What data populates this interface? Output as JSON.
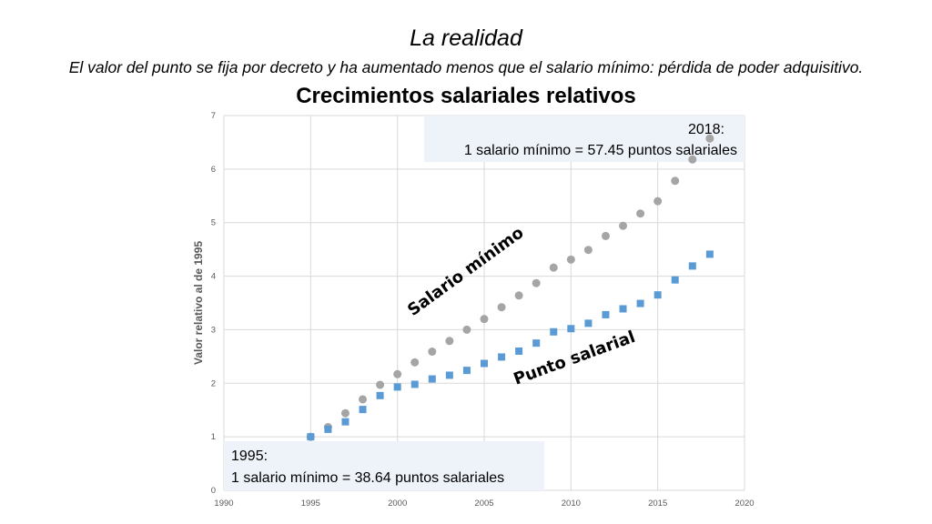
{
  "slide": {
    "title": "La realidad",
    "subtitle": "El valor del punto se fija por decreto y ha aumentado menos que el salario mínimo: pérdida de poder adquisitivo."
  },
  "chart_data": {
    "type": "scatter",
    "title": "Crecimientos salariales relativos",
    "xlabel": "",
    "ylabel": "Valor relativo al de 1995",
    "xlim": [
      1990,
      2020
    ],
    "ylim": [
      0,
      7
    ],
    "x_ticks": [
      1990,
      1995,
      2000,
      2005,
      2010,
      2015,
      2020
    ],
    "y_ticks": [
      0,
      1,
      2,
      3,
      4,
      5,
      6,
      7
    ],
    "grid": true,
    "series": [
      {
        "name": "Salario mínimo",
        "marker": "circle",
        "color": "#A5A5A5",
        "x": [
          1995,
          1996,
          1997,
          1998,
          1999,
          2000,
          2001,
          2002,
          2003,
          2004,
          2005,
          2006,
          2007,
          2008,
          2009,
          2010,
          2011,
          2012,
          2013,
          2014,
          2015,
          2016,
          2017,
          2018
        ],
        "y": [
          1.0,
          1.18,
          1.44,
          1.7,
          1.97,
          2.17,
          2.39,
          2.59,
          2.79,
          3.0,
          3.2,
          3.42,
          3.64,
          3.87,
          4.16,
          4.31,
          4.49,
          4.75,
          4.94,
          5.17,
          5.4,
          5.78,
          6.18,
          6.57
        ]
      },
      {
        "name": "Punto salarial",
        "marker": "square",
        "color": "#5B9BD5",
        "x": [
          1995,
          1996,
          1997,
          1998,
          1999,
          2000,
          2001,
          2002,
          2003,
          2004,
          2005,
          2006,
          2007,
          2008,
          2009,
          2010,
          2011,
          2012,
          2013,
          2014,
          2015,
          2016,
          2017,
          2018
        ],
        "y": [
          1.0,
          1.14,
          1.28,
          1.51,
          1.77,
          1.93,
          1.98,
          2.08,
          2.15,
          2.24,
          2.37,
          2.49,
          2.6,
          2.75,
          2.96,
          3.02,
          3.12,
          3.28,
          3.39,
          3.49,
          3.65,
          3.93,
          4.19,
          4.41
        ]
      }
    ],
    "annotations": {
      "top_year": "2018:",
      "top_text": "1 salario mínimo = 57.45 puntos salariales",
      "bottom_year": "1995:",
      "bottom_text": "1 salario mínimo = 38.64 puntos salariales"
    },
    "colors": {
      "gridline": "#D9D9D9",
      "note_background": "#EEF3FA"
    }
  }
}
